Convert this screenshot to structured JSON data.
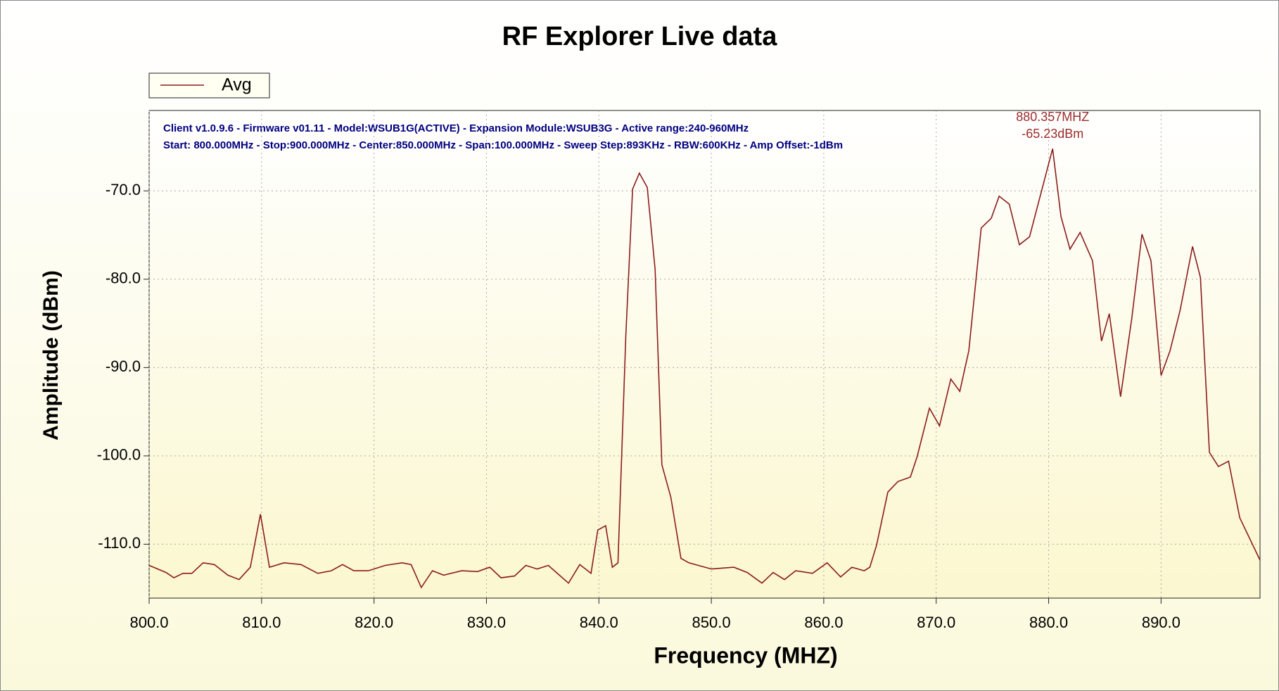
{
  "chart_data": {
    "type": "line",
    "title": "RF Explorer Live data",
    "xlabel": "Frequency (MHZ)",
    "ylabel": "Amplitude (dBm)",
    "info_lines": [
      "Client v1.0.9.6 - Firmware v01.11 - Model:WSUB1G(ACTIVE) - Expansion Module:WSUB3G - Active range:240-960MHz",
      "Start: 800.000MHz - Stop:900.000MHz - Center:850.000MHz - Span:100.000MHz - Sweep Step:893KHz - RBW:600KHz - Amp Offset:-1dBm"
    ],
    "annotation": {
      "lines": [
        "880.357MHZ",
        "-65.23dBm"
      ],
      "x": 880.357,
      "y": -65.23,
      "color": "#9b2c2c"
    },
    "legend": "top-left",
    "grid": true,
    "xlim": [
      800,
      898.8
    ],
    "ylim": [
      -116.1,
      -60.9
    ],
    "xticks": [
      {
        "value": 800,
        "label": "800.0"
      },
      {
        "value": 810,
        "label": "810.0"
      },
      {
        "value": 820,
        "label": "820.0"
      },
      {
        "value": 830,
        "label": "830.0"
      },
      {
        "value": 840,
        "label": "840.0"
      },
      {
        "value": 850,
        "label": "850.0"
      },
      {
        "value": 860,
        "label": "860.0"
      },
      {
        "value": 870,
        "label": "870.0"
      },
      {
        "value": 880,
        "label": "880.0"
      },
      {
        "value": 890,
        "label": "890.0"
      }
    ],
    "yticks": [
      {
        "value": -110,
        "label": "-110.0"
      },
      {
        "value": -100,
        "label": "-100.0"
      },
      {
        "value": -90,
        "label": "-90.0"
      },
      {
        "value": -80,
        "label": "-80.0"
      },
      {
        "value": -70,
        "label": "-70.0"
      }
    ],
    "x": [
      800,
      801.5,
      802.2,
      803,
      803.8,
      804.8,
      805.8,
      807,
      808,
      809,
      809.9,
      810.7,
      812,
      813.5,
      815,
      816.2,
      817.2,
      818.2,
      819.5,
      821,
      822.5,
      823.3,
      824.2,
      825.2,
      826.2,
      827.8,
      829.2,
      830.3,
      831.3,
      832.5,
      833.5,
      834.5,
      835.5,
      836.4,
      837.3,
      838.3,
      839.3,
      839.9,
      840.6,
      841.2,
      841.7,
      842.4,
      843,
      843.6,
      844.3,
      845,
      845.6,
      846.4,
      847.3,
      848,
      850,
      852,
      853.2,
      854.5,
      855.5,
      856.5,
      857.5,
      859,
      860.3,
      861.5,
      862.5,
      863.6,
      864.1,
      864.7,
      865.7,
      866.6,
      867.7,
      868.3,
      869.4,
      870.3,
      871.3,
      872.1,
      872.9,
      874,
      874.9,
      875.6,
      876.5,
      877.4,
      878.3,
      880.357,
      881.1,
      881.9,
      882.8,
      883.9,
      884.7,
      885.4,
      886.4,
      887.4,
      888.3,
      889.1,
      890,
      890.8,
      891.7,
      892.8,
      893.5,
      894.3,
      895.1,
      896,
      897,
      898.8
    ],
    "series": [
      {
        "name": "Avg",
        "color": "#8b1c1c",
        "values": [
          -112.4,
          -113.2,
          -113.8,
          -113.3,
          -113.3,
          -112.1,
          -112.3,
          -113.5,
          -114.0,
          -112.6,
          -106.6,
          -112.6,
          -112.1,
          -112.3,
          -113.3,
          -113.0,
          -112.3,
          -113.0,
          -113.0,
          -112.4,
          -112.1,
          -112.3,
          -114.9,
          -113.0,
          -113.5,
          -113.0,
          -113.1,
          -112.6,
          -113.8,
          -113.6,
          -112.4,
          -112.8,
          -112.4,
          -113.4,
          -114.4,
          -112.3,
          -113.3,
          -108.4,
          -107.9,
          -112.6,
          -112.1,
          -86.3,
          -69.8,
          -68.0,
          -69.6,
          -78.9,
          -101.0,
          -104.7,
          -111.6,
          -112.1,
          -112.8,
          -112.6,
          -113.2,
          -114.4,
          -113.2,
          -114.0,
          -113.0,
          -113.3,
          -112.1,
          -113.7,
          -112.6,
          -113.0,
          -112.6,
          -110.1,
          -104.1,
          -102.9,
          -102.4,
          -100.1,
          -94.6,
          -96.6,
          -91.3,
          -92.7,
          -88.1,
          -74.2,
          -73.1,
          -70.6,
          -71.5,
          -76.1,
          -75.2,
          -65.23,
          -72.9,
          -76.6,
          -74.7,
          -77.9,
          -87.0,
          -83.9,
          -93.3,
          -84.4,
          -74.9,
          -77.9,
          -90.9,
          -88.1,
          -83.5,
          -76.3,
          -79.8,
          -99.6,
          -101.2,
          -100.6,
          -107.0,
          -111.8
        ]
      }
    ]
  }
}
